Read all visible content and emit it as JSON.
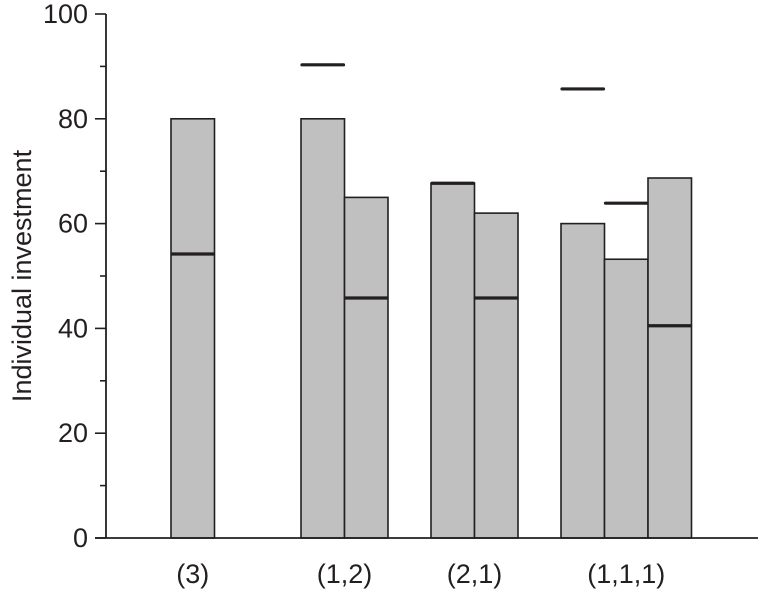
{
  "chart_data": {
    "type": "bar",
    "title": "",
    "xlabel": "",
    "ylabel": "Individual investment",
    "ylim": [
      0,
      100
    ],
    "yticks": [
      0,
      20,
      40,
      60,
      80,
      100
    ],
    "grid": false,
    "legend": null,
    "categories": [
      "(3)",
      "(1,2)",
      "(2,1)",
      "(1,1,1)"
    ],
    "groups": [
      {
        "category": "(3)",
        "bars": [
          {
            "value": 80,
            "marker": 54.2
          }
        ]
      },
      {
        "category": "(1,2)",
        "bars": [
          {
            "value": 80,
            "marker": 90.3
          },
          {
            "value": 65,
            "marker": 45.8
          }
        ]
      },
      {
        "category": "(2,1)",
        "bars": [
          {
            "value": 67.7,
            "marker": 67.7
          },
          {
            "value": 62,
            "marker": 45.8
          }
        ]
      },
      {
        "category": "(1,1,1)",
        "bars": [
          {
            "value": 60,
            "marker": 85.7
          },
          {
            "value": 53.2,
            "marker": 63.9
          },
          {
            "value": 68.7,
            "marker": 40.5
          }
        ]
      }
    ],
    "colors": {
      "bar_fill": "#c0c0c0",
      "bar_stroke": "#231f20",
      "marker": "#231f20",
      "axis": "#231f20"
    }
  }
}
